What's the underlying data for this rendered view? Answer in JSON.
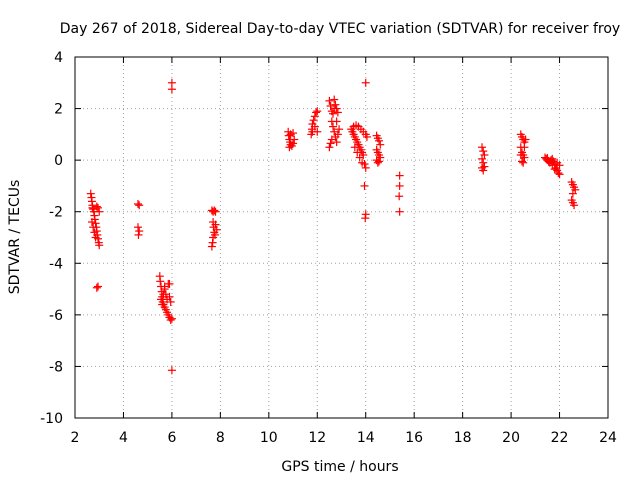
{
  "chart_data": {
    "type": "scatter",
    "title": "Day 267 of 2018, Sidereal Day-to-day VTEC variation (SDTVAR) for receiver froy",
    "xlabel": "GPS time / hours",
    "ylabel": "SDTVAR / TECUs",
    "xlim": [
      2,
      24
    ],
    "ylim": [
      -10,
      4
    ],
    "xticks": [
      2,
      4,
      6,
      8,
      10,
      12,
      14,
      16,
      18,
      20,
      22,
      24
    ],
    "yticks": [
      -10,
      -8,
      -6,
      -4,
      -2,
      0,
      2,
      4
    ],
    "grid": true,
    "marker": "+",
    "color": "#ff0000",
    "series": [
      {
        "name": "SDTVAR",
        "points": [
          [
            2.65,
            -1.3
          ],
          [
            2.68,
            -1.45
          ],
          [
            2.7,
            -1.6
          ],
          [
            2.72,
            -1.75
          ],
          [
            2.75,
            -1.9
          ],
          [
            2.78,
            -2.0
          ],
          [
            2.8,
            -2.15
          ],
          [
            2.82,
            -2.3
          ],
          [
            2.85,
            -2.45
          ],
          [
            2.88,
            -2.6
          ],
          [
            2.9,
            -2.75
          ],
          [
            2.92,
            -2.9
          ],
          [
            2.95,
            -3.05
          ],
          [
            2.98,
            -3.2
          ],
          [
            3.0,
            -3.3
          ],
          [
            2.7,
            -2.4
          ],
          [
            2.75,
            -2.6
          ],
          [
            2.8,
            -2.8
          ],
          [
            2.85,
            -3.0
          ],
          [
            2.9,
            -1.8
          ],
          [
            2.95,
            -1.85
          ],
          [
            2.72,
            -1.85
          ],
          [
            3.0,
            -2.0
          ],
          [
            2.95,
            -4.9
          ],
          [
            2.9,
            -4.95
          ],
          [
            4.6,
            -1.7
          ],
          [
            4.65,
            -1.75
          ],
          [
            4.6,
            -2.6
          ],
          [
            4.65,
            -2.75
          ],
          [
            4.62,
            -2.9
          ],
          [
            5.5,
            -4.5
          ],
          [
            5.52,
            -4.7
          ],
          [
            5.55,
            -4.9
          ],
          [
            5.58,
            -5.1
          ],
          [
            5.6,
            -5.3
          ],
          [
            5.62,
            -5.5
          ],
          [
            5.65,
            -5.6
          ],
          [
            5.7,
            -5.7
          ],
          [
            5.75,
            -5.8
          ],
          [
            5.8,
            -5.9
          ],
          [
            5.85,
            -6.0
          ],
          [
            5.9,
            -6.1
          ],
          [
            5.95,
            -6.2
          ],
          [
            6.0,
            -6.15
          ],
          [
            5.7,
            -5.0
          ],
          [
            5.75,
            -5.2
          ],
          [
            5.8,
            -5.4
          ],
          [
            5.85,
            -4.8
          ],
          [
            5.9,
            -5.3
          ],
          [
            5.95,
            -5.5
          ],
          [
            5.55,
            -5.4
          ],
          [
            5.6,
            -5.6
          ],
          [
            5.65,
            -5.2
          ],
          [
            5.7,
            -4.9
          ],
          [
            5.9,
            -4.8
          ],
          [
            6.0,
            3.0
          ],
          [
            6.0,
            2.75
          ],
          [
            6.0,
            -8.15
          ],
          [
            7.65,
            -1.95
          ],
          [
            7.7,
            -2.0
          ],
          [
            7.75,
            -1.95
          ],
          [
            7.8,
            -2.0
          ],
          [
            7.7,
            -2.4
          ],
          [
            7.72,
            -2.6
          ],
          [
            7.75,
            -2.8
          ],
          [
            7.7,
            -3.0
          ],
          [
            7.68,
            -3.2
          ],
          [
            7.65,
            -3.35
          ],
          [
            7.8,
            -2.5
          ],
          [
            7.85,
            -2.7
          ],
          [
            7.78,
            -2.9
          ],
          [
            10.8,
            1.1
          ],
          [
            10.82,
            0.95
          ],
          [
            10.85,
            0.8
          ],
          [
            10.88,
            0.7
          ],
          [
            10.9,
            0.6
          ],
          [
            10.95,
            0.55
          ],
          [
            11.0,
            0.65
          ],
          [
            11.05,
            0.8
          ],
          [
            10.9,
            1.0
          ],
          [
            11.0,
            1.05
          ],
          [
            10.85,
            0.5
          ],
          [
            11.75,
            1.0
          ],
          [
            11.78,
            1.2
          ],
          [
            11.8,
            1.4
          ],
          [
            11.85,
            1.55
          ],
          [
            11.9,
            1.7
          ],
          [
            11.95,
            1.85
          ],
          [
            12.0,
            1.9
          ],
          [
            11.8,
            1.1
          ],
          [
            11.9,
            1.3
          ],
          [
            12.0,
            1.1
          ],
          [
            12.5,
            2.3
          ],
          [
            12.55,
            2.1
          ],
          [
            12.6,
            1.9
          ],
          [
            12.65,
            1.8
          ],
          [
            12.7,
            2.0
          ],
          [
            12.75,
            2.15
          ],
          [
            12.8,
            2.0
          ],
          [
            12.85,
            1.85
          ],
          [
            12.6,
            1.5
          ],
          [
            12.65,
            1.3
          ],
          [
            12.7,
            1.1
          ],
          [
            12.75,
            0.9
          ],
          [
            12.8,
            0.7
          ],
          [
            12.85,
            1.0
          ],
          [
            12.9,
            1.2
          ],
          [
            12.5,
            0.5
          ],
          [
            12.55,
            0.65
          ],
          [
            12.6,
            0.8
          ],
          [
            12.7,
            2.35
          ],
          [
            12.8,
            1.5
          ],
          [
            13.4,
            1.2
          ],
          [
            13.45,
            1.1
          ],
          [
            13.5,
            1.0
          ],
          [
            13.55,
            0.9
          ],
          [
            13.6,
            0.8
          ],
          [
            13.65,
            0.7
          ],
          [
            13.7,
            0.6
          ],
          [
            13.75,
            0.5
          ],
          [
            13.8,
            0.4
          ],
          [
            13.85,
            0.3
          ],
          [
            13.9,
            0.2
          ],
          [
            13.5,
            1.3
          ],
          [
            13.6,
            1.35
          ],
          [
            13.7,
            1.3
          ],
          [
            13.8,
            1.2
          ],
          [
            13.9,
            1.1
          ],
          [
            14.0,
            1.0
          ],
          [
            14.05,
            0.9
          ],
          [
            13.55,
            0.5
          ],
          [
            13.65,
            0.3
          ],
          [
            13.75,
            0.1
          ],
          [
            13.85,
            -0.1
          ],
          [
            13.95,
            -0.15
          ],
          [
            14.0,
            3.0
          ],
          [
            14.0,
            -0.3
          ],
          [
            13.95,
            -1.0
          ],
          [
            14.0,
            -2.1
          ],
          [
            13.98,
            -2.25
          ],
          [
            14.45,
            0.95
          ],
          [
            14.5,
            0.85
          ],
          [
            14.55,
            0.75
          ],
          [
            14.6,
            0.6
          ],
          [
            14.45,
            0.4
          ],
          [
            14.5,
            0.3
          ],
          [
            14.55,
            0.2
          ],
          [
            14.45,
            0.0
          ],
          [
            14.5,
            -0.1
          ],
          [
            14.55,
            -0.05
          ],
          [
            14.6,
            0.1
          ],
          [
            15.4,
            -0.6
          ],
          [
            15.4,
            -1.0
          ],
          [
            15.38,
            -1.4
          ],
          [
            15.4,
            -2.0
          ],
          [
            18.8,
            0.5
          ],
          [
            18.85,
            0.35
          ],
          [
            18.9,
            0.2
          ],
          [
            18.8,
            0.05
          ],
          [
            18.85,
            -0.1
          ],
          [
            18.9,
            -0.25
          ],
          [
            18.8,
            -0.3
          ],
          [
            18.85,
            -0.4
          ],
          [
            20.4,
            1.0
          ],
          [
            20.45,
            0.9
          ],
          [
            20.5,
            0.8
          ],
          [
            20.55,
            0.7
          ],
          [
            20.4,
            0.5
          ],
          [
            20.45,
            0.3
          ],
          [
            20.5,
            0.2
          ],
          [
            20.55,
            0.1
          ],
          [
            20.45,
            -0.05
          ],
          [
            20.5,
            -0.1
          ],
          [
            20.55,
            0.5
          ],
          [
            20.6,
            0.8
          ],
          [
            20.4,
            0.2
          ],
          [
            21.4,
            0.1
          ],
          [
            21.45,
            0.05
          ],
          [
            21.5,
            0.0
          ],
          [
            21.55,
            -0.05
          ],
          [
            21.6,
            -0.1
          ],
          [
            21.65,
            0.0
          ],
          [
            21.7,
            0.05
          ],
          [
            21.75,
            -0.05
          ],
          [
            21.8,
            -0.15
          ],
          [
            21.85,
            -0.3
          ],
          [
            21.9,
            -0.4
          ],
          [
            21.95,
            -0.5
          ],
          [
            22.0,
            -0.55
          ],
          [
            21.5,
            0.08
          ],
          [
            21.6,
            -0.05
          ],
          [
            21.7,
            -0.2
          ],
          [
            21.8,
            -0.35
          ],
          [
            21.9,
            -0.1
          ],
          [
            22.0,
            -0.2
          ],
          [
            22.5,
            -0.85
          ],
          [
            22.55,
            -0.95
          ],
          [
            22.6,
            -1.05
          ],
          [
            22.65,
            -1.15
          ],
          [
            22.55,
            -1.3
          ],
          [
            22.5,
            -1.55
          ],
          [
            22.55,
            -1.65
          ],
          [
            22.6,
            -1.75
          ]
        ]
      }
    ]
  }
}
